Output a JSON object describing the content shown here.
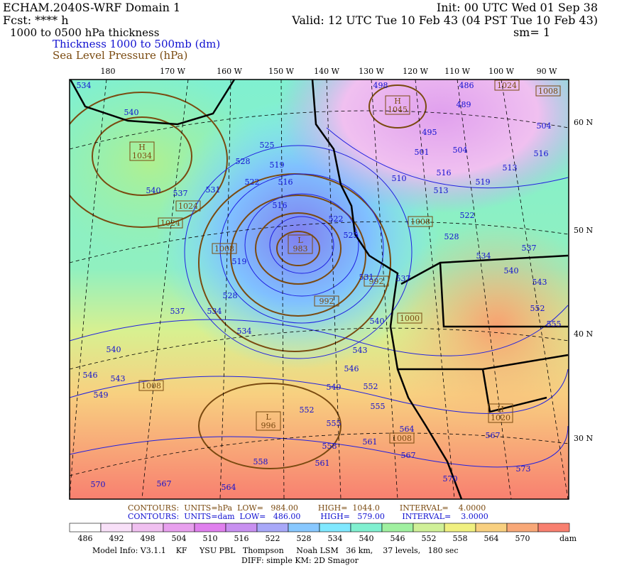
{
  "header": {
    "model": "ECHAM.2040S-WRF Domain 1",
    "fcst": "Fcst: **** h",
    "field": "1000 to 0500 hPa thickness",
    "legend_thickness": "Thickness 1000 to 500mb (dm)",
    "legend_slp": "Sea Level Pressure (hPa)",
    "init": "Init: 00 UTC Wed 01 Sep 38",
    "valid": "Valid: 12 UTC Tue 10 Feb 43 (04 PST Tue 10 Feb 43)",
    "smoothing": "sm= 1"
  },
  "lon_labels": [
    "180",
    "170 W",
    "160 W",
    "150 W",
    "140 W",
    "130 W",
    "120 W",
    "110 W",
    "100 W",
    "90 W"
  ],
  "lat_labels": [
    "60 N",
    "50 N",
    "40 N",
    "30 N"
  ],
  "pressure_centers": [
    {
      "letter": "H",
      "value": "1034"
    },
    {
      "letter": "H",
      "value": "1045"
    },
    {
      "letter": "L",
      "value": "983"
    },
    {
      "letter": "L",
      "value": "996"
    },
    {
      "letter": "H",
      "value": "1020"
    }
  ],
  "isobar_labels": [
    "1024",
    "1024",
    "1008",
    "992",
    "992",
    "1008",
    "1008",
    "1008",
    "1000",
    "1024",
    "1008"
  ],
  "thickness_labels": [
    "534",
    "540",
    "540",
    "537",
    "531",
    "525",
    "528",
    "519",
    "522",
    "516",
    "516",
    "522",
    "525",
    "519",
    "528",
    "537",
    "534",
    "534",
    "540",
    "546",
    "543",
    "549",
    "531",
    "537",
    "540",
    "543",
    "546",
    "549",
    "552",
    "555",
    "552",
    "555",
    "558",
    "561",
    "558",
    "561",
    "564",
    "567",
    "570",
    "564",
    "567",
    "567",
    "570",
    "573",
    "498",
    "486",
    "489",
    "495",
    "501",
    "504",
    "510",
    "513",
    "516",
    "519",
    "516",
    "513",
    "504",
    "522",
    "528",
    "534",
    "537",
    "540",
    "543",
    "552",
    "555"
  ],
  "footer": {
    "slp_contours": "CONTOURS:  UNITS=hPa  LOW=   984.00        HIGH=  1044.0        INTERVAL=    4.0000",
    "thickness_contours": "CONTOURS:  UNITS=dam  LOW=   486.00        HIGH=   579.00       INTERVAL=    3.0000",
    "model_info": "Model Info: V3.1.1    KF     YSU PBL   Thompson     Noah LSM   36 km,    37 levels,   180 sec",
    "diff": "DIFF: simple KM: 2D Smagor"
  },
  "colorbar": {
    "labels": [
      "486",
      "492",
      "498",
      "504",
      "510",
      "516",
      "522",
      "528",
      "534",
      "540",
      "546",
      "552",
      "558",
      "564",
      "570"
    ],
    "unit": "dam"
  }
}
